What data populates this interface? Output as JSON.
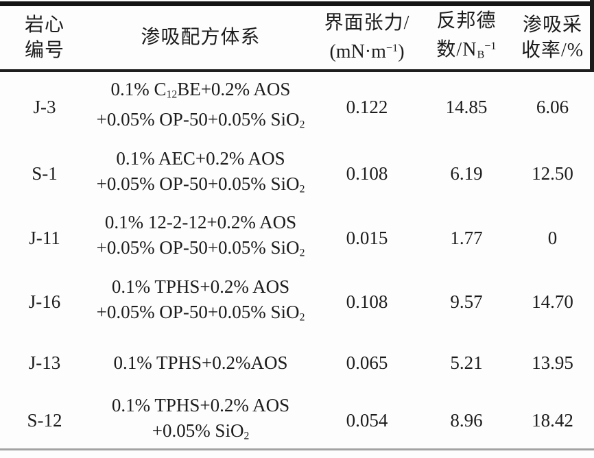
{
  "colors": {
    "background": "#fdfdfd",
    "text": "#1c1c1c",
    "rule_heavy": "#141414",
    "rule_mid": "#1e1e1e",
    "rule_light": "#a3a3a3"
  },
  "table": {
    "header": {
      "core_id_lines": [
        "岩心",
        "编号"
      ],
      "formula": "渗吸配方体系",
      "ift_line1": "界面张力/",
      "ift_line2": [
        {
          "t": "(mN·m"
        },
        {
          "t": "−1",
          "s": "sup"
        },
        {
          "t": ")"
        }
      ],
      "bond_line1": "反邦德",
      "bond_line2": [
        {
          "t": "数/N"
        },
        {
          "t": "B",
          "s": "sub"
        },
        {
          "t": "−1",
          "s": "sup"
        }
      ],
      "recovery_lines": [
        "渗吸采",
        "收率/%"
      ]
    },
    "rows": [
      {
        "core_id": "J-3",
        "formula": [
          [
            {
              "t": "0.1% C"
            },
            {
              "t": "12",
              "s": "sub"
            },
            {
              "t": "BE+0.2% AOS"
            }
          ],
          [
            {
              "t": "+0.05% OP-50+0.05% SiO"
            },
            {
              "t": "2",
              "s": "sub"
            }
          ]
        ],
        "ift": "0.122",
        "bond_number": "14.85",
        "recovery": "6.06"
      },
      {
        "core_id": "S-1",
        "formula": [
          [
            {
              "t": "0.1% AEC+0.2% AOS"
            }
          ],
          [
            {
              "t": "+0.05% OP-50+0.05% SiO"
            },
            {
              "t": "2",
              "s": "sub"
            }
          ]
        ],
        "ift": "0.108",
        "bond_number": "6.19",
        "recovery": "12.50"
      },
      {
        "core_id": "J-11",
        "formula": [
          [
            {
              "t": "0.1% 12-2-12+0.2% AOS"
            }
          ],
          [
            {
              "t": "+0.05% OP-50+0.05% SiO"
            },
            {
              "t": "2",
              "s": "sub"
            }
          ]
        ],
        "ift": "0.015",
        "bond_number": "1.77",
        "recovery": "0"
      },
      {
        "core_id": "J-16",
        "formula": [
          [
            {
              "t": "0.1% TPHS+0.2% AOS"
            }
          ],
          [
            {
              "t": "+0.05% OP-50+0.05% SiO"
            },
            {
              "t": "2",
              "s": "sub"
            }
          ]
        ],
        "ift": "0.108",
        "bond_number": "9.57",
        "recovery": "14.70"
      },
      {
        "core_id": "J-13",
        "formula": [
          [
            {
              "t": "0.1% TPHS+0.2%AOS"
            }
          ]
        ],
        "ift": "0.065",
        "bond_number": "5.21",
        "recovery": "13.95"
      },
      {
        "core_id": "S-12",
        "formula": [
          [
            {
              "t": "0.1% TPHS+0.2% AOS"
            }
          ],
          [
            {
              "t": "+0.05% SiO"
            },
            {
              "t": "2",
              "s": "sub"
            }
          ]
        ],
        "ift": "0.054",
        "bond_number": "8.96",
        "recovery": "18.42"
      }
    ]
  }
}
